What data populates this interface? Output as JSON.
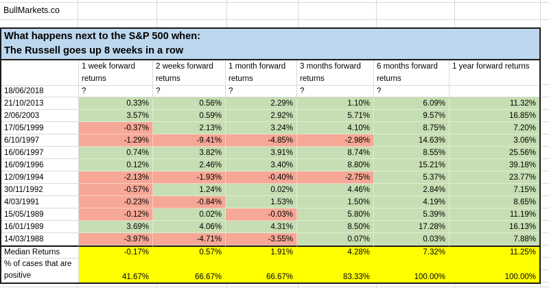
{
  "brand": "BullMarkets.co",
  "title": {
    "line1": "What happens next to the S&P 500 when:",
    "line2": "The Russell goes up 8 weeks in a row"
  },
  "table": {
    "columns": [
      "1 week forward returns",
      "2 weeks forward returns",
      "1 month forward returns",
      "3 months forward returns",
      "6 months forward returns",
      "1 year forward returns"
    ],
    "pending_row": {
      "date": "18/06/2018",
      "values": [
        "?",
        "?",
        "?",
        "?",
        "?",
        ""
      ]
    },
    "rows": [
      {
        "date": "21/10/2013",
        "values": [
          "0.33%",
          "0.56%",
          "2.29%",
          "1.10%",
          "6.09%",
          "11.32%"
        ]
      },
      {
        "date": "2/06/2003",
        "values": [
          "3.57%",
          "0.59%",
          "2.92%",
          "5.71%",
          "9.57%",
          "16.85%"
        ]
      },
      {
        "date": "17/05/1999",
        "values": [
          "-0.37%",
          "2.13%",
          "3.24%",
          "4.10%",
          "8.75%",
          "7.20%"
        ]
      },
      {
        "date": "6/10/1997",
        "values": [
          "-1.29%",
          "-9.41%",
          "-4.85%",
          "-2.98%",
          "14.63%",
          "3.06%"
        ]
      },
      {
        "date": "16/06/1997",
        "values": [
          "0.74%",
          "3.82%",
          "3.91%",
          "8.74%",
          "8.55%",
          "25.56%"
        ]
      },
      {
        "date": "16/09/1996",
        "values": [
          "0.12%",
          "2.46%",
          "3.40%",
          "8.80%",
          "15.21%",
          "39.18%"
        ]
      },
      {
        "date": "12/09/1994",
        "values": [
          "-2.13%",
          "-1.93%",
          "-0.40%",
          "-2.75%",
          "5.37%",
          "23.77%"
        ]
      },
      {
        "date": "30/11/1992",
        "values": [
          "-0.57%",
          "1.24%",
          "0.02%",
          "4.46%",
          "2.84%",
          "7.15%"
        ]
      },
      {
        "date": "4/03/1991",
        "values": [
          "-0.23%",
          "-0.84%",
          "1.53%",
          "1.50%",
          "4.19%",
          "8.65%"
        ]
      },
      {
        "date": "15/05/1989",
        "values": [
          "-0.12%",
          "0.02%",
          "-0.03%",
          "5.80%",
          "5.39%",
          "11.19%"
        ]
      },
      {
        "date": "16/01/1989",
        "values": [
          "3.69%",
          "4.06%",
          "4.31%",
          "8.50%",
          "17.28%",
          "16.13%"
        ]
      },
      {
        "date": "14/03/1988",
        "values": [
          "-3.97%",
          "-4.71%",
          "-3.55%",
          "0.07%",
          "0.03%",
          "7.88%"
        ]
      }
    ],
    "median": {
      "label": "Median Returns",
      "values": [
        "-0.17%",
        "0.57%",
        "1.91%",
        "4.28%",
        "7.32%",
        "11.25%"
      ]
    },
    "percent_positive": {
      "label": "% of cases that are positive",
      "values": [
        "41.67%",
        "66.67%",
        "66.67%",
        "83.33%",
        "100.00%",
        "100.00%"
      ]
    }
  },
  "colors": {
    "green": "#c6deb3",
    "red": "#f6a795",
    "yellow": "#ffff00",
    "title_bg": "#bdd7ee"
  }
}
